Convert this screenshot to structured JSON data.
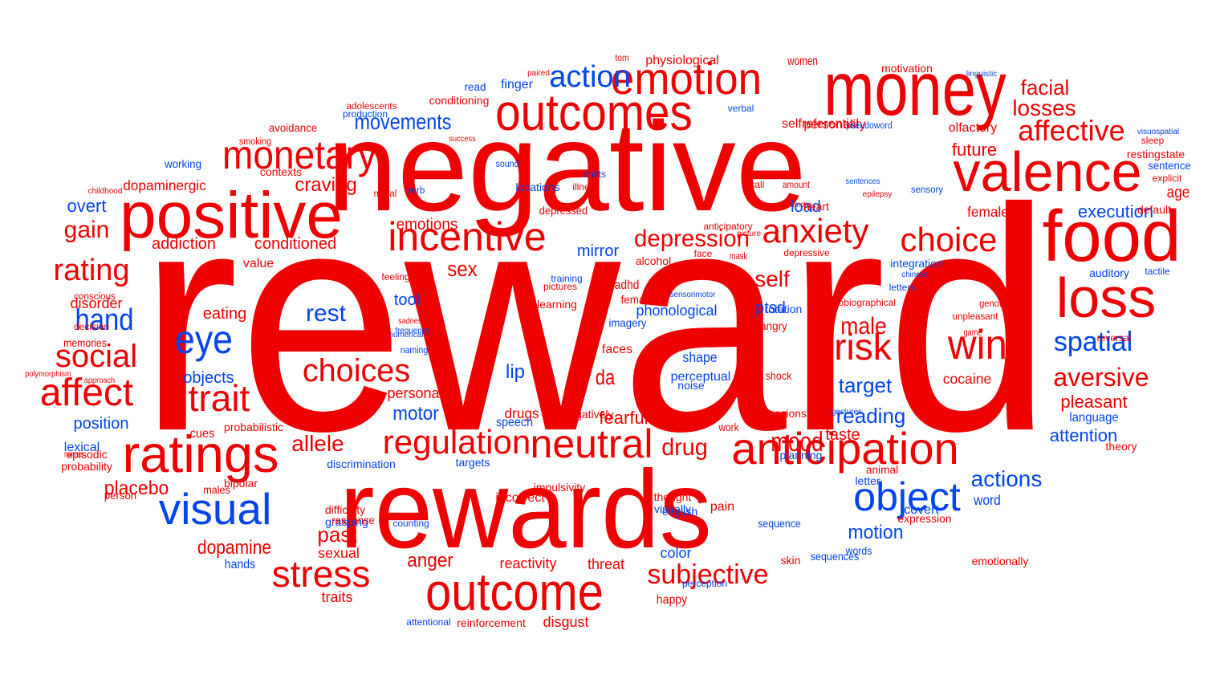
{
  "colors": {
    "red": "#ee0000",
    "blue": "#0044ee"
  },
  "words": [
    {
      "text": "reward",
      "color": "red"
    },
    {
      "text": "negative",
      "color": "red"
    },
    {
      "text": "rewards",
      "color": "red"
    },
    {
      "text": "positive",
      "color": "red"
    },
    {
      "text": "money",
      "color": "red"
    },
    {
      "text": "food",
      "color": "red"
    },
    {
      "text": "outcomes",
      "color": "red"
    },
    {
      "text": "emotion",
      "color": "red"
    },
    {
      "text": "valence",
      "color": "red"
    },
    {
      "text": "loss",
      "color": "red"
    },
    {
      "text": "monetary",
      "color": "red"
    },
    {
      "text": "incentive",
      "color": "red"
    },
    {
      "text": "ratings",
      "color": "red"
    },
    {
      "text": "outcome",
      "color": "red"
    },
    {
      "text": "anticipation",
      "color": "red"
    },
    {
      "text": "neutral",
      "color": "red"
    },
    {
      "text": "regulation",
      "color": "red"
    },
    {
      "text": "affect",
      "color": "red"
    },
    {
      "text": "visual",
      "color": "blue"
    },
    {
      "text": "object",
      "color": "blue"
    },
    {
      "text": "choice",
      "color": "red"
    },
    {
      "text": "anxiety",
      "color": "red"
    },
    {
      "text": "risk",
      "color": "red"
    },
    {
      "text": "win",
      "color": "red"
    },
    {
      "text": "stress",
      "color": "red"
    },
    {
      "text": "trait",
      "color": "red"
    },
    {
      "text": "rating",
      "color": "red"
    },
    {
      "text": "social",
      "color": "red"
    },
    {
      "text": "eye",
      "color": "blue"
    },
    {
      "text": "hand",
      "color": "blue"
    },
    {
      "text": "action",
      "color": "blue"
    },
    {
      "text": "affective",
      "color": "red"
    },
    {
      "text": "spatial",
      "color": "blue"
    },
    {
      "text": "aversive",
      "color": "red"
    },
    {
      "text": "choices",
      "color": "red"
    },
    {
      "text": "depression",
      "color": "red"
    },
    {
      "text": "gain",
      "color": "red"
    },
    {
      "text": "mood",
      "color": "red"
    },
    {
      "text": "drug",
      "color": "red"
    },
    {
      "text": "subjective",
      "color": "red"
    },
    {
      "text": "movements",
      "color": "blue"
    },
    {
      "text": "losses",
      "color": "red"
    },
    {
      "text": "facial",
      "color": "red"
    },
    {
      "text": "actions",
      "color": "blue"
    },
    {
      "text": "target",
      "color": "blue"
    },
    {
      "text": "reading",
      "color": "blue"
    },
    {
      "text": "male",
      "color": "red"
    },
    {
      "text": "self",
      "color": "red"
    },
    {
      "text": "sex",
      "color": "red"
    },
    {
      "text": "rest",
      "color": "blue"
    },
    {
      "text": "da",
      "color": "red"
    },
    {
      "text": "craving",
      "color": "red"
    },
    {
      "text": "dopamine",
      "color": "red"
    },
    {
      "text": "past",
      "color": "red"
    },
    {
      "text": "anger",
      "color": "red"
    },
    {
      "text": "motion",
      "color": "blue"
    },
    {
      "text": "attention",
      "color": "blue"
    },
    {
      "text": "execution",
      "color": "blue"
    },
    {
      "text": "future",
      "color": "red"
    },
    {
      "text": "allele",
      "color": "red"
    },
    {
      "text": "placebo",
      "color": "red"
    },
    {
      "text": "fearful",
      "color": "red"
    },
    {
      "text": "motor",
      "color": "blue"
    },
    {
      "text": "pleasant",
      "color": "red"
    },
    {
      "text": "age",
      "color": "red"
    },
    {
      "text": "emotions",
      "color": "red"
    },
    {
      "text": "overt",
      "color": "blue"
    },
    {
      "text": "addiction",
      "color": "red"
    },
    {
      "text": "conditioned",
      "color": "red"
    },
    {
      "text": "dopaminergic",
      "color": "red"
    },
    {
      "text": "disorder",
      "color": "red"
    },
    {
      "text": "eating",
      "color": "red"
    },
    {
      "text": "objects",
      "color": "blue"
    },
    {
      "text": "position",
      "color": "blue"
    },
    {
      "text": "lip",
      "color": "blue"
    },
    {
      "text": "tool",
      "color": "blue"
    },
    {
      "text": "ptsd",
      "color": "blue"
    },
    {
      "text": "load",
      "color": "blue"
    },
    {
      "text": "female",
      "color": "red"
    },
    {
      "text": "mirror",
      "color": "blue"
    },
    {
      "text": "phonological",
      "color": "blue"
    },
    {
      "text": "cocaine",
      "color": "red"
    },
    {
      "text": "taste",
      "color": "red"
    },
    {
      "text": "shape",
      "color": "blue"
    },
    {
      "text": "perceptual",
      "color": "blue"
    },
    {
      "text": "drugs",
      "color": "red"
    },
    {
      "text": "personal",
      "color": "red"
    },
    {
      "text": "traits",
      "color": "red"
    },
    {
      "text": "sexual",
      "color": "red"
    },
    {
      "text": "hands",
      "color": "blue"
    },
    {
      "text": "reactivity",
      "color": "red"
    },
    {
      "text": "threat",
      "color": "red"
    },
    {
      "text": "happy",
      "color": "red"
    },
    {
      "text": "color",
      "color": "blue"
    },
    {
      "text": "pain",
      "color": "red"
    },
    {
      "text": "word",
      "color": "blue"
    },
    {
      "text": "language",
      "color": "blue"
    },
    {
      "text": "cues",
      "color": "red"
    },
    {
      "text": "lexical",
      "color": "blue"
    },
    {
      "text": "males",
      "color": "red"
    },
    {
      "text": "bipolar",
      "color": "red"
    },
    {
      "text": "incorrect",
      "color": "red"
    },
    {
      "text": "disgust",
      "color": "red"
    },
    {
      "text": "reinforcement",
      "color": "red"
    },
    {
      "text": "covert",
      "color": "blue"
    },
    {
      "text": "words",
      "color": "blue"
    },
    {
      "text": "speech",
      "color": "blue"
    },
    {
      "text": "physiological",
      "color": "red"
    },
    {
      "text": "women",
      "color": "red"
    },
    {
      "text": "motivation",
      "color": "red"
    },
    {
      "text": "personality",
      "color": "red"
    },
    {
      "text": "olfactory",
      "color": "red"
    },
    {
      "text": "conditioning",
      "color": "red"
    },
    {
      "text": "finger",
      "color": "blue"
    },
    {
      "text": "avoidance",
      "color": "red"
    },
    {
      "text": "working",
      "color": "blue"
    },
    {
      "text": "contexts",
      "color": "red"
    },
    {
      "text": "moral",
      "color": "red"
    },
    {
      "text": "verb",
      "color": "blue"
    },
    {
      "text": "locations",
      "color": "blue"
    },
    {
      "text": "sound",
      "color": "blue"
    },
    {
      "text": "shifts",
      "color": "blue"
    },
    {
      "text": "illness",
      "color": "red"
    },
    {
      "text": "recall",
      "color": "red"
    },
    {
      "text": "heart",
      "color": "red"
    },
    {
      "text": "depressed",
      "color": "red"
    },
    {
      "text": "anticipatory",
      "color": "red"
    },
    {
      "text": "sensory",
      "color": "blue"
    },
    {
      "text": "selfreferential",
      "color": "red"
    },
    {
      "text": "value",
      "color": "red"
    },
    {
      "text": "alcohol",
      "color": "red"
    },
    {
      "text": "adhd",
      "color": "red"
    },
    {
      "text": "females",
      "color": "red"
    },
    {
      "text": "imagery",
      "color": "blue"
    },
    {
      "text": "faces",
      "color": "red"
    },
    {
      "text": "training",
      "color": "blue"
    },
    {
      "text": "pictures",
      "color": "red"
    },
    {
      "text": "learning",
      "color": "red"
    },
    {
      "text": "face",
      "color": "red"
    },
    {
      "text": "mask",
      "color": "red"
    },
    {
      "text": "depressive",
      "color": "red"
    },
    {
      "text": "integration",
      "color": "blue"
    },
    {
      "text": "auditory",
      "color": "blue"
    },
    {
      "text": "tactile",
      "color": "blue"
    },
    {
      "text": "autobiographical",
      "color": "red"
    },
    {
      "text": "unpleasant",
      "color": "red"
    },
    {
      "text": "genotype",
      "color": "red"
    },
    {
      "text": "game",
      "color": "red"
    },
    {
      "text": "angry",
      "color": "red"
    },
    {
      "text": "letters",
      "color": "blue"
    },
    {
      "text": "reversal",
      "color": "red"
    },
    {
      "text": "memories",
      "color": "red"
    },
    {
      "text": "decision",
      "color": "red"
    },
    {
      "text": "conscious",
      "color": "red"
    },
    {
      "text": "feelings",
      "color": "red"
    },
    {
      "text": "sadness",
      "color": "red"
    },
    {
      "text": "frequency",
      "color": "blue"
    },
    {
      "text": "naming",
      "color": "blue"
    },
    {
      "text": "numerical",
      "color": "blue"
    },
    {
      "text": "tom",
      "color": "red"
    },
    {
      "text": "paired",
      "color": "red"
    },
    {
      "text": "read",
      "color": "blue"
    },
    {
      "text": "production",
      "color": "blue"
    },
    {
      "text": "adolescents",
      "color": "red"
    },
    {
      "text": "smoking",
      "color": "red"
    },
    {
      "text": "success",
      "color": "red"
    },
    {
      "text": "childhood",
      "color": "red"
    },
    {
      "text": "verbal",
      "color": "blue"
    },
    {
      "text": "pseudoword",
      "color": "blue"
    },
    {
      "text": "linguistic",
      "color": "blue"
    },
    {
      "text": "amount",
      "color": "red"
    },
    {
      "text": "famous",
      "color": "red"
    },
    {
      "text": "epilepsy",
      "color": "red"
    },
    {
      "text": "sentences",
      "color": "blue"
    },
    {
      "text": "picture",
      "color": "red"
    },
    {
      "text": "default",
      "color": "red"
    },
    {
      "text": "restingstate",
      "color": "red"
    },
    {
      "text": "sleep",
      "color": "red"
    },
    {
      "text": "sentence",
      "color": "blue"
    },
    {
      "text": "explicit",
      "color": "red"
    },
    {
      "text": "visuospatial",
      "color": "blue"
    },
    {
      "text": "chinese",
      "color": "blue"
    },
    {
      "text": "rotation",
      "color": "blue"
    },
    {
      "text": "sensorimotor",
      "color": "blue"
    },
    {
      "text": "letter",
      "color": "blue"
    },
    {
      "text": "animal",
      "color": "red"
    },
    {
      "text": "thought",
      "color": "red"
    },
    {
      "text": "english",
      "color": "blue"
    },
    {
      "text": "visually",
      "color": "blue"
    },
    {
      "text": "sequence",
      "color": "blue"
    },
    {
      "text": "expression",
      "color": "red"
    },
    {
      "text": "skin",
      "color": "red"
    },
    {
      "text": "sequences",
      "color": "blue"
    },
    {
      "text": "emotionally",
      "color": "red"
    },
    {
      "text": "impulsivity",
      "color": "red"
    },
    {
      "text": "negatively",
      "color": "red"
    },
    {
      "text": "perception",
      "color": "blue"
    },
    {
      "text": "work",
      "color": "red"
    },
    {
      "text": "shock",
      "color": "red"
    },
    {
      "text": "expressions",
      "color": "red"
    },
    {
      "text": "planning",
      "color": "blue"
    },
    {
      "text": "noise",
      "color": "blue"
    },
    {
      "text": "discrimination",
      "color": "blue"
    },
    {
      "text": "targets",
      "color": "blue"
    },
    {
      "text": "difficulty",
      "color": "red"
    },
    {
      "text": "grasping",
      "color": "blue"
    },
    {
      "text": "response",
      "color": "red"
    },
    {
      "text": "person",
      "color": "red"
    },
    {
      "text": "probability",
      "color": "red"
    },
    {
      "text": "episodic",
      "color": "red"
    },
    {
      "text": "names",
      "color": "red"
    },
    {
      "text": "polymorphism",
      "color": "red"
    },
    {
      "text": "approach",
      "color": "red"
    },
    {
      "text": "counting",
      "color": "blue"
    },
    {
      "text": "attentional",
      "color": "blue"
    },
    {
      "text": "probabilistic",
      "color": "red"
    },
    {
      "text": "gestures",
      "color": "blue"
    },
    {
      "text": "theory",
      "color": "red"
    }
  ]
}
